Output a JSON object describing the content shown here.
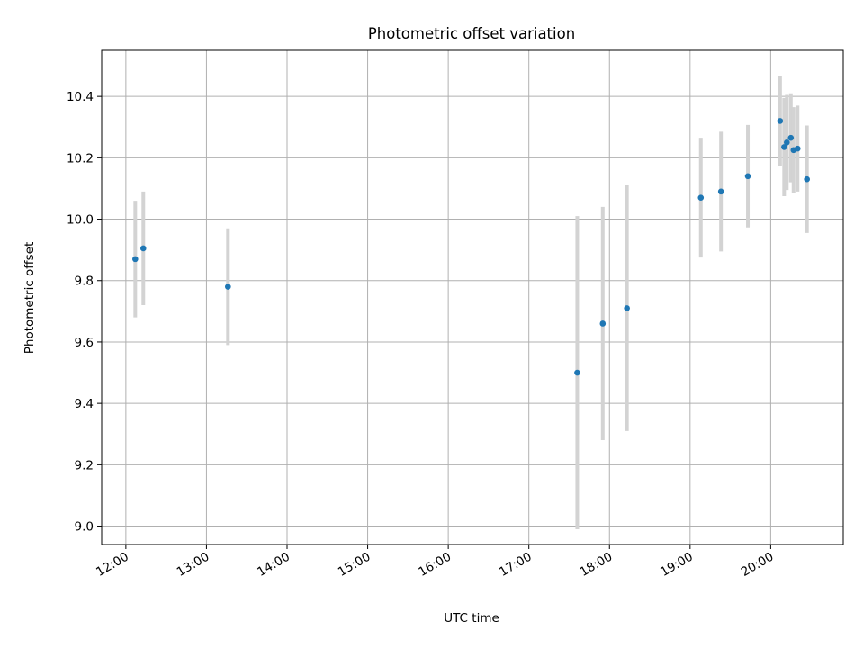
{
  "chart_data": {
    "type": "scatter",
    "title": "Photometric offset variation",
    "xlabel": "UTC time",
    "ylabel": "Photometric offset",
    "x_tick_labels": [
      "12:00",
      "13:00",
      "14:00",
      "15:00",
      "16:00",
      "17:00",
      "18:00",
      "19:00",
      "20:00"
    ],
    "y_tick_labels": [
      "9.0",
      "9.2",
      "9.4",
      "9.6",
      "9.8",
      "10.0",
      "10.2",
      "10.4"
    ],
    "x_ticks": [
      "12:00",
      "13:00",
      "14:00",
      "15:00",
      "16:00",
      "17:00",
      "18:00",
      "19:00",
      "20:00"
    ],
    "y_ticks": [
      9.0,
      9.2,
      9.4,
      9.6,
      9.8,
      10.0,
      10.2,
      10.4
    ],
    "xlim": [
      "11:42",
      "20:54"
    ],
    "ylim": [
      8.94,
      10.55
    ],
    "grid": true,
    "point_color": "#1f77b4",
    "errorbar_color": "#d3d3d3",
    "points": [
      {
        "x": "12:07",
        "y": 9.87,
        "err": 0.19
      },
      {
        "x": "12:13",
        "y": 9.905,
        "err": 0.185
      },
      {
        "x": "13:16",
        "y": 9.78,
        "err": 0.19
      },
      {
        "x": "17:36",
        "y": 9.5,
        "err": 0.51
      },
      {
        "x": "17:55",
        "y": 9.66,
        "err": 0.38
      },
      {
        "x": "18:13",
        "y": 9.71,
        "err": 0.4
      },
      {
        "x": "19:08",
        "y": 10.07,
        "err": 0.195
      },
      {
        "x": "19:23",
        "y": 10.09,
        "err": 0.195
      },
      {
        "x": "19:43",
        "y": 10.14,
        "err": 0.167
      },
      {
        "x": "20:07",
        "y": 10.32,
        "err": 0.147
      },
      {
        "x": "20:10",
        "y": 10.235,
        "err": 0.16
      },
      {
        "x": "20:12",
        "y": 10.25,
        "err": 0.155
      },
      {
        "x": "20:15",
        "y": 10.265,
        "err": 0.145
      },
      {
        "x": "20:17",
        "y": 10.225,
        "err": 0.14
      },
      {
        "x": "20:20",
        "y": 10.23,
        "err": 0.14
      },
      {
        "x": "20:27",
        "y": 10.13,
        "err": 0.175
      }
    ]
  }
}
